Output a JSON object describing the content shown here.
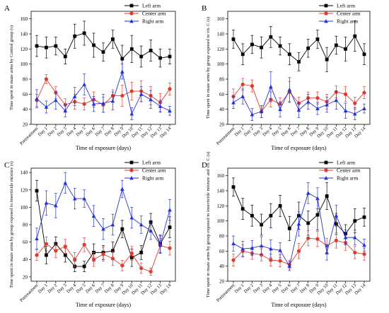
{
  "chart_data": [
    {
      "panel_label": "A",
      "type": "line",
      "xlabel": "Time of exposure (days)",
      "ylabel": "Time spent in maze arms by Control group (s)",
      "categories": [
        "Pretreatment",
        "Day 1",
        "Day 2",
        "Day 3",
        "Day 4",
        "Day 5",
        "Day 6",
        "Day 7",
        "Day 8",
        "Day 9",
        "Day 10",
        "Day 11",
        "Day 12",
        "Day 13",
        "Day 14"
      ],
      "ylim": [
        20,
        170
      ],
      "yticks": [
        20,
        40,
        60,
        80,
        100,
        120,
        140,
        160
      ],
      "legend": "top-right",
      "series": [
        {
          "name": "Left arm",
          "color": "#000000",
          "marker": "square",
          "values": [
            124,
            122,
            124,
            110,
            137,
            141,
            125,
            116,
            133,
            107,
            120,
            110,
            118,
            108,
            110
          ],
          "errors": [
            14,
            14,
            12,
            10,
            16,
            16,
            16,
            12,
            12,
            18,
            18,
            14,
            14,
            12,
            10
          ]
        },
        {
          "name": "Center arm",
          "color": "#e03a2f",
          "marker": "circle",
          "values": [
            52,
            80,
            62,
            46,
            50,
            47,
            53,
            46,
            58,
            58,
            64,
            64,
            58,
            49,
            67
          ],
          "errors": [
            8,
            6,
            8,
            8,
            10,
            8,
            10,
            10,
            8,
            14,
            12,
            14,
            12,
            12,
            8
          ]
        },
        {
          "name": "Right arm",
          "color": "#2433d6",
          "marker": "triangle",
          "values": [
            54,
            43,
            52,
            38,
            57,
            73,
            47,
            48,
            51,
            90,
            34,
            60,
            53,
            44,
            38
          ],
          "errors": [
            12,
            8,
            12,
            8,
            12,
            14,
            10,
            12,
            12,
            10,
            8,
            10,
            12,
            8,
            6
          ]
        }
      ]
    },
    {
      "panel_label": "B",
      "type": "line",
      "xlabel": "Time of exposure (days)",
      "ylabel": "Time spent in maze arms by group exposed to vit. C (s)",
      "categories": [
        "Pretreatment",
        "Day 1",
        "Day 2",
        "Day 3",
        "Day 4",
        "Day 5",
        "Day 6",
        "Day 7",
        "Day 8",
        "Day 9",
        "Day 10",
        "Day 11",
        "Day 12",
        "Day 13",
        "Day 14"
      ],
      "ylim": [
        20,
        170
      ],
      "yticks": [
        20,
        40,
        60,
        80,
        100,
        120,
        140,
        160
      ],
      "legend": "top-right",
      "series": [
        {
          "name": "Left arm",
          "color": "#000000",
          "marker": "square",
          "values": [
            133,
            113,
            126,
            122,
            136,
            124,
            113,
            103,
            121,
            133,
            106,
            125,
            120,
            137,
            113
          ],
          "errors": [
            12,
            14,
            12,
            14,
            14,
            12,
            14,
            12,
            12,
            12,
            16,
            12,
            16,
            20,
            14
          ]
        },
        {
          "name": "Center arm",
          "color": "#e03a2f",
          "marker": "circle",
          "values": [
            57,
            73,
            71,
            37,
            53,
            47,
            63,
            48,
            55,
            55,
            50,
            63,
            60,
            48,
            62
          ],
          "errors": [
            10,
            8,
            8,
            8,
            10,
            8,
            14,
            8,
            8,
            8,
            10,
            8,
            10,
            8,
            8
          ]
        },
        {
          "name": "Right arm",
          "color": "#2433d6",
          "marker": "triangle",
          "values": [
            49,
            57,
            33,
            37,
            70,
            40,
            66,
            39,
            50,
            41,
            46,
            52,
            38,
            34,
            41
          ],
          "errors": [
            8,
            10,
            8,
            8,
            20,
            10,
            16,
            10,
            10,
            8,
            10,
            12,
            10,
            8,
            6
          ]
        }
      ]
    },
    {
      "panel_label": "C",
      "type": "line",
      "xlabel": "Time of exposure (days)",
      "ylabel": "Time spent in maze arms by group exposed to insecticide mixture (s)",
      "categories": [
        "Pretreatment",
        "Day 1",
        "Day 2",
        "Day 3",
        "Day 4",
        "Day 5",
        "Day 6",
        "Day 7",
        "Day 8",
        "Day 9",
        "Day 10",
        "Day 11",
        "Day 12",
        "Day 13",
        "Day 14"
      ],
      "ylim": [
        15,
        145
      ],
      "yticks": [
        20,
        40,
        60,
        80,
        100,
        120,
        140
      ],
      "legend": "top-right",
      "series": [
        {
          "name": "Left arm",
          "color": "#000000",
          "marker": "square",
          "values": [
            119,
            45,
            58,
            45,
            32,
            32,
            48,
            48,
            50,
            75,
            42,
            48,
            83,
            58,
            77
          ],
          "errors": [
            12,
            10,
            8,
            8,
            6,
            6,
            10,
            8,
            10,
            10,
            10,
            8,
            10,
            10,
            12
          ]
        },
        {
          "name": "Center arm",
          "color": "#e03a2f",
          "marker": "circle",
          "values": [
            45,
            58,
            50,
            55,
            40,
            57,
            40,
            46,
            41,
            33,
            47,
            30,
            26,
            56,
            53
          ],
          "errors": [
            6,
            8,
            8,
            8,
            8,
            8,
            8,
            8,
            8,
            6,
            8,
            6,
            4,
            8,
            8
          ]
        },
        {
          "name": "Right arm",
          "color": "#2433d6",
          "marker": "triangle",
          "values": [
            64,
            105,
            102,
            128,
            110,
            110,
            90,
            75,
            80,
            121,
            88,
            80,
            73,
            57,
            97
          ],
          "errors": [
            12,
            14,
            14,
            12,
            12,
            10,
            12,
            12,
            12,
            10,
            12,
            10,
            10,
            10,
            12
          ]
        }
      ]
    },
    {
      "panel_label": "D",
      "type": "line",
      "xlabel": "Time of exposure (days)",
      "ylabel": "Time spent in maze arms by group exposed to insecticide mixture and vit. C (s)",
      "categories": [
        "Pretreatment",
        "Day 1",
        "Day 2",
        "Day 3",
        "Day 4",
        "Day 5",
        "Day 6",
        "Day 7",
        "Day 8",
        "Day 9",
        "Day 10",
        "Day 11",
        "Day 12",
        "Day 13",
        "Day 14"
      ],
      "ylim": [
        20,
        170
      ],
      "yticks": [
        20,
        40,
        60,
        80,
        100,
        120,
        140,
        160
      ],
      "legend": "top-right",
      "series": [
        {
          "name": "Left arm",
          "color": "#000000",
          "marker": "square",
          "values": [
            145,
            116,
            107,
            95,
            107,
            120,
            90,
            107,
            97,
            108,
            133,
            96,
            83,
            100,
            105
          ],
          "errors": [
            12,
            14,
            14,
            14,
            16,
            14,
            16,
            18,
            16,
            20,
            18,
            14,
            12,
            16,
            12
          ]
        },
        {
          "name": "Center arm",
          "color": "#e03a2f",
          "marker": "circle",
          "values": [
            48,
            60,
            57,
            55,
            48,
            47,
            42,
            60,
            77,
            76,
            67,
            74,
            71,
            58,
            56
          ],
          "errors": [
            8,
            8,
            8,
            8,
            8,
            8,
            6,
            10,
            10,
            10,
            10,
            10,
            10,
            8,
            8
          ]
        },
        {
          "name": "Right arm",
          "color": "#2433d6",
          "marker": "triangle",
          "values": [
            70,
            63,
            64,
            67,
            63,
            61,
            40,
            96,
            137,
            130,
            58,
            107,
            78,
            78,
            68
          ],
          "errors": [
            10,
            10,
            10,
            12,
            12,
            10,
            6,
            16,
            14,
            14,
            10,
            14,
            10,
            10,
            8
          ]
        }
      ]
    }
  ]
}
